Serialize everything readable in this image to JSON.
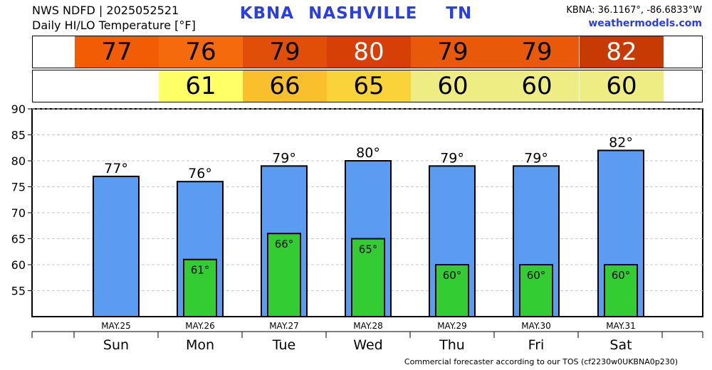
{
  "header": {
    "line1": "NWS NDFD | 2025052521",
    "line2": "Daily HI/LO Temperature [°F]",
    "station": "KBNA",
    "city": "NASHVILLE",
    "state": "TN",
    "coords": "KBNA: 36.1167°, -86.6833°W",
    "site": "weathermodels.com"
  },
  "footer": "Commercial forecaster according to our TOS (cf2230w0UKBNA0p230)",
  "strips": {
    "hi": [
      {
        "value": "77",
        "color": "#f25c05"
      },
      {
        "value": "76",
        "color": "#f46a0c"
      },
      {
        "value": "79",
        "color": "#e04e08"
      },
      {
        "value": "80",
        "color": "#d63f05"
      },
      {
        "value": "79",
        "color": "#e85a0a"
      },
      {
        "value": "79",
        "color": "#e85a0a"
      },
      {
        "value": "82",
        "color": "#c73a03"
      }
    ],
    "lo": [
      {
        "value": "",
        "color": "#ffffff"
      },
      {
        "value": "61",
        "color": "#ffff66"
      },
      {
        "value": "66",
        "color": "#f9bf2c"
      },
      {
        "value": "65",
        "color": "#fad23a"
      },
      {
        "value": "60",
        "color": "#eded84"
      },
      {
        "value": "60",
        "color": "#eded84"
      },
      {
        "value": "60",
        "color": "#eded84"
      }
    ],
    "hi_text_colors": [
      "#000000",
      "#000000",
      "#000000",
      "#ffffff",
      "#000000",
      "#000000",
      "#ffffff"
    ]
  },
  "chart_data": {
    "type": "bar",
    "categories": [
      "Sun",
      "Mon",
      "Tue",
      "Wed",
      "Thu",
      "Fri",
      "Sat"
    ],
    "dates": [
      "MAY.25",
      "MAY.26",
      "MAY.27",
      "MAY.28",
      "MAY.29",
      "MAY.30",
      "MAY.31"
    ],
    "series": [
      {
        "name": "HI",
        "values": [
          77,
          76,
          79,
          80,
          79,
          79,
          82
        ],
        "labels": [
          "77°",
          "76°",
          "79°",
          "80°",
          "79°",
          "79°",
          "82°"
        ],
        "color": "#5b9cf2"
      },
      {
        "name": "LO",
        "values": [
          null,
          61,
          66,
          65,
          60,
          60,
          60
        ],
        "labels": [
          "",
          "61°",
          "66°",
          "65°",
          "60°",
          "60°",
          "60°"
        ],
        "color": "#33cc33"
      }
    ],
    "yticks": [
      55,
      60,
      65,
      70,
      75,
      80,
      85,
      90
    ],
    "ytick_labels": [
      "55",
      "60",
      "65",
      "70",
      "75",
      "80",
      "85",
      "90"
    ],
    "ylim": [
      50,
      90
    ],
    "grid": true
  }
}
